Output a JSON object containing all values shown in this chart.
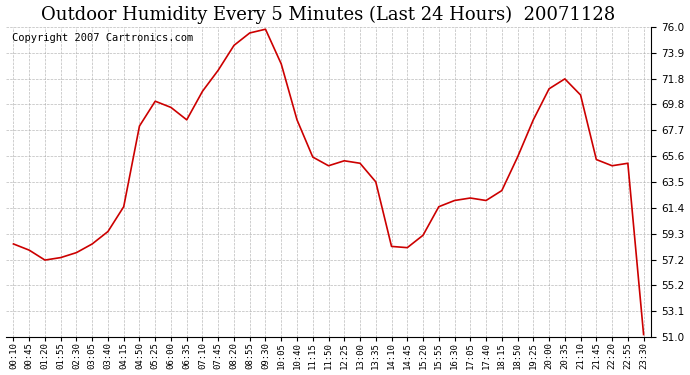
{
  "title": "Outdoor Humidity Every 5 Minutes (Last 24 Hours)  20071128",
  "copyright": "Copyright 2007 Cartronics.com",
  "line_color": "#cc0000",
  "bg_color": "#ffffff",
  "grid_color": "#aaaaaa",
  "ylim": [
    51.0,
    76.0
  ],
  "yticks": [
    51.0,
    53.1,
    55.2,
    57.2,
    59.3,
    61.4,
    63.5,
    65.6,
    67.7,
    69.8,
    71.8,
    73.9,
    76.0
  ],
  "x_labels": [
    "00:10",
    "00:45",
    "01:20",
    "01:55",
    "02:30",
    "03:05",
    "03:40",
    "04:15",
    "04:50",
    "05:25",
    "06:00",
    "06:35",
    "07:10",
    "07:45",
    "08:20",
    "08:55",
    "09:30",
    "10:05",
    "10:40",
    "11:15",
    "11:50",
    "12:25",
    "13:00",
    "13:35",
    "14:10",
    "14:45",
    "15:20",
    "15:55",
    "16:30",
    "17:05",
    "17:40",
    "18:15",
    "18:50",
    "19:25",
    "20:00",
    "20:35",
    "21:10",
    "21:45",
    "22:20",
    "22:55",
    "23:30"
  ],
  "humidity": [
    58.5,
    58.0,
    57.2,
    57.4,
    57.8,
    58.5,
    59.5,
    61.5,
    68.0,
    70.0,
    69.5,
    68.5,
    70.8,
    72.5,
    74.5,
    75.5,
    75.8,
    73.0,
    68.5,
    65.5,
    64.8,
    65.2,
    65.0,
    63.5,
    58.3,
    58.2,
    59.2,
    61.5,
    62.0,
    62.2,
    62.0,
    62.8,
    65.5,
    68.5,
    71.0,
    71.8,
    70.5,
    65.3,
    64.8,
    65.0,
    51.2
  ],
  "title_fontsize": 13,
  "copyright_fontsize": 7.5
}
